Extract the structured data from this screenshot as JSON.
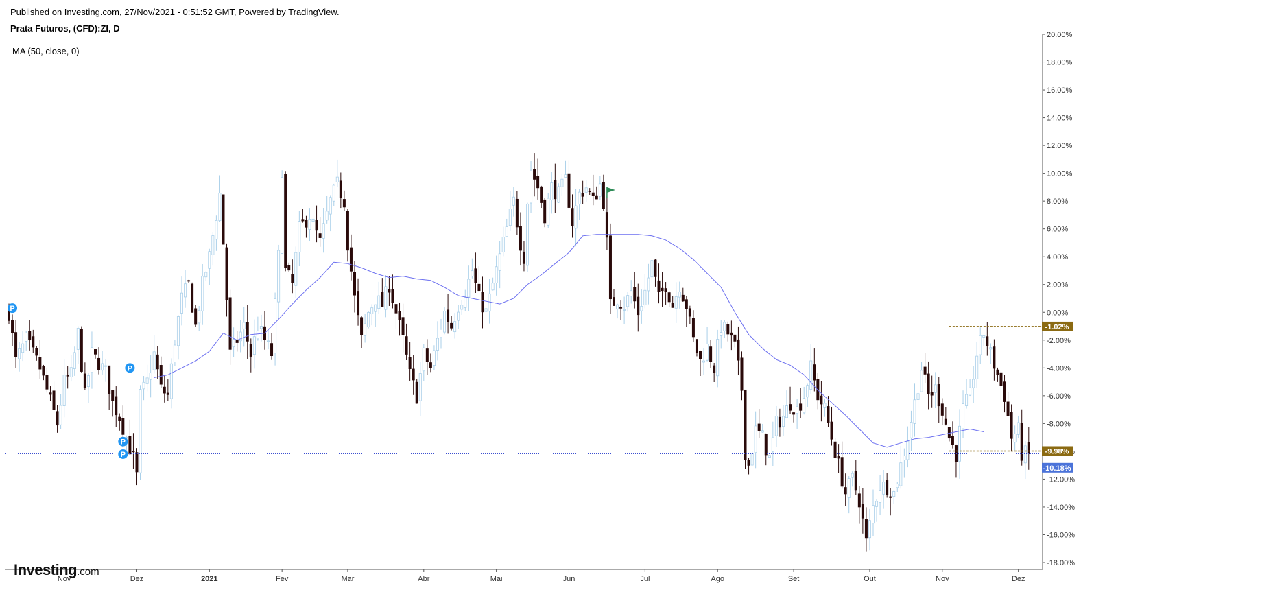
{
  "header": {
    "published": "Published on Investing.com, 27/Nov/2021 - 0:51:52 GMT, Powered by TradingView.",
    "symbol": "Prata Futuros, (CFD):ZI, D",
    "indicator": "MA (50, close, 0)"
  },
  "logo": {
    "brand": "Investing",
    "suffix": ".com"
  },
  "colors": {
    "up_candle": "#a9cfe9",
    "down_candle": "#2a0a0a",
    "ma_line": "#6b6ff0",
    "current_line": "#3b4fd0",
    "tag_brown": "#8b6a12",
    "tag_blue": "#4b73d9",
    "p_marker": "#2196f3",
    "flag": "#2e8b57"
  },
  "chart_data": {
    "type": "candlestick",
    "y_unit": "%",
    "ylim": [
      -19,
      20.6
    ],
    "y_ticks": [
      "20.00%",
      "18.00%",
      "16.00%",
      "14.00%",
      "12.00%",
      "10.00%",
      "8.00%",
      "6.00%",
      "4.00%",
      "2.00%",
      "0.00%",
      "-2.00%",
      "-4.00%",
      "-6.00%",
      "-8.00%",
      "-10.00%",
      "-12.00%",
      "-14.00%",
      "-16.00%",
      "-18.00%"
    ],
    "y_tick_values": [
      20,
      18,
      16,
      14,
      12,
      10,
      8,
      6,
      4,
      2,
      0,
      -2,
      -4,
      -6,
      -8,
      -10,
      -12,
      -14,
      -16,
      -18
    ],
    "x_labels": [
      "Nov",
      "Dez",
      "2021",
      "Fev",
      "Mar",
      "Abr",
      "Mai",
      "Jun",
      "Jul",
      "Ago",
      "Set",
      "Out",
      "Nov",
      "Dez"
    ],
    "x_label_bold": [
      false,
      false,
      true,
      false,
      false,
      false,
      false,
      false,
      false,
      false,
      false,
      false,
      false,
      false
    ],
    "x_label_index": [
      16,
      37,
      58,
      79,
      98,
      120,
      141,
      162,
      184,
      205,
      227,
      249,
      270,
      292
    ],
    "num_bars": 296,
    "path_points": [
      [
        0,
        0
      ],
      [
        2,
        -3.5
      ],
      [
        5,
        -2
      ],
      [
        9,
        -4
      ],
      [
        14,
        -8
      ],
      [
        16,
        -5
      ],
      [
        18,
        -4.5
      ],
      [
        20,
        -1.5
      ],
      [
        22,
        -6
      ],
      [
        24,
        -3
      ],
      [
        28,
        -4.3
      ],
      [
        30,
        -6.5
      ],
      [
        32,
        -7.5
      ],
      [
        34,
        -9
      ],
      [
        36,
        -10.5
      ],
      [
        37,
        -11.8
      ],
      [
        38,
        -6
      ],
      [
        40,
        -5
      ],
      [
        42,
        -3
      ],
      [
        44,
        -5.5
      ],
      [
        46,
        -6
      ],
      [
        48,
        -2
      ],
      [
        50,
        1
      ],
      [
        52,
        2
      ],
      [
        54,
        -1
      ],
      [
        56,
        2
      ],
      [
        58,
        4
      ],
      [
        60,
        7
      ],
      [
        61,
        8.5
      ],
      [
        62,
        5
      ],
      [
        64,
        -3
      ],
      [
        66,
        -2
      ],
      [
        68,
        -1
      ],
      [
        70,
        -3
      ],
      [
        72,
        -1
      ],
      [
        74,
        -2
      ],
      [
        76,
        -3
      ],
      [
        78,
        4
      ],
      [
        79,
        10.3
      ],
      [
        80,
        3
      ],
      [
        82,
        2
      ],
      [
        84,
        6
      ],
      [
        87,
        7
      ],
      [
        90,
        5
      ],
      [
        93,
        8
      ],
      [
        95,
        9.2
      ],
      [
        97,
        8
      ],
      [
        98,
        5
      ],
      [
        100,
        1
      ],
      [
        102,
        -2
      ],
      [
        104,
        0
      ],
      [
        106,
        1
      ],
      [
        108,
        0.5
      ],
      [
        110,
        2
      ],
      [
        112,
        0
      ],
      [
        114,
        -2
      ],
      [
        116,
        -4.5
      ],
      [
        118,
        -6
      ],
      [
        120,
        -3
      ],
      [
        122,
        -4
      ],
      [
        124,
        -2
      ],
      [
        126,
        0
      ],
      [
        128,
        -1
      ],
      [
        130,
        0.5
      ],
      [
        132,
        1.5
      ],
      [
        134,
        3
      ],
      [
        136,
        1
      ],
      [
        138,
        0
      ],
      [
        140,
        2
      ],
      [
        142,
        4
      ],
      [
        144,
        6
      ],
      [
        146,
        8
      ],
      [
        148,
        5
      ],
      [
        149,
        4
      ],
      [
        150,
        8
      ],
      [
        151,
        10.3
      ],
      [
        153,
        9
      ],
      [
        155,
        7
      ],
      [
        157,
        9
      ],
      [
        159,
        8.5
      ],
      [
        161,
        9.5
      ],
      [
        163,
        6.5
      ],
      [
        165,
        8.5
      ],
      [
        167,
        9
      ],
      [
        169,
        8
      ],
      [
        171,
        9.2
      ],
      [
        172,
        8
      ],
      [
        173,
        5
      ],
      [
        174,
        0.5
      ],
      [
        176,
        1
      ],
      [
        178,
        0.5
      ],
      [
        180,
        1.5
      ],
      [
        182,
        0
      ],
      [
        184,
        1.5
      ],
      [
        186,
        3.5
      ],
      [
        188,
        1
      ],
      [
        190,
        2
      ],
      [
        192,
        0.5
      ],
      [
        194,
        2
      ],
      [
        196,
        0.5
      ],
      [
        198,
        -2
      ],
      [
        200,
        -3.5
      ],
      [
        202,
        -2.5
      ],
      [
        204,
        -4
      ],
      [
        206,
        -1
      ],
      [
        208,
        -1.5
      ],
      [
        210,
        -2.5
      ],
      [
        212,
        -5.5
      ],
      [
        213,
        -10
      ],
      [
        214,
        -11
      ],
      [
        216,
        -8.5
      ],
      [
        218,
        -9
      ],
      [
        220,
        -10.5
      ],
      [
        222,
        -8
      ],
      [
        224,
        -7.5
      ],
      [
        226,
        -6.5
      ],
      [
        228,
        -7
      ],
      [
        230,
        -6
      ],
      [
        232,
        -4
      ],
      [
        234,
        -6
      ],
      [
        236,
        -7
      ],
      [
        238,
        -9
      ],
      [
        240,
        -11
      ],
      [
        242,
        -13
      ],
      [
        244,
        -12
      ],
      [
        246,
        -13.5
      ],
      [
        248,
        -16.5
      ],
      [
        250,
        -14
      ],
      [
        252,
        -12.5
      ],
      [
        254,
        -12.5
      ],
      [
        256,
        -13
      ],
      [
        258,
        -11
      ],
      [
        260,
        -9
      ],
      [
        262,
        -6.5
      ],
      [
        264,
        -4
      ],
      [
        266,
        -6
      ],
      [
        268,
        -5.5
      ],
      [
        270,
        -7
      ],
      [
        272,
        -9
      ],
      [
        274,
        -10.2
      ],
      [
        276,
        -7
      ],
      [
        278,
        -6
      ],
      [
        280,
        -3
      ],
      [
        282,
        -1.5
      ],
      [
        284,
        -3
      ],
      [
        286,
        -4.5
      ],
      [
        288,
        -6
      ],
      [
        290,
        -9
      ],
      [
        292,
        -8.5
      ],
      [
        293,
        -10.18
      ],
      [
        295,
        -10.18
      ]
    ],
    "ma_points": [
      [
        42,
        -4.7
      ],
      [
        46,
        -4.5
      ],
      [
        50,
        -4.0
      ],
      [
        54,
        -3.5
      ],
      [
        58,
        -2.8
      ],
      [
        62,
        -1.5
      ],
      [
        66,
        -2.0
      ],
      [
        70,
        -1.6
      ],
      [
        74,
        -1.5
      ],
      [
        78,
        -0.5
      ],
      [
        82,
        0.6
      ],
      [
        86,
        1.6
      ],
      [
        90,
        2.5
      ],
      [
        94,
        3.6
      ],
      [
        98,
        3.5
      ],
      [
        102,
        3.2
      ],
      [
        106,
        2.8
      ],
      [
        110,
        2.5
      ],
      [
        114,
        2.6
      ],
      [
        118,
        2.4
      ],
      [
        122,
        2.3
      ],
      [
        126,
        1.8
      ],
      [
        130,
        1.2
      ],
      [
        134,
        1.0
      ],
      [
        138,
        0.8
      ],
      [
        142,
        0.6
      ],
      [
        146,
        1.0
      ],
      [
        150,
        2.0
      ],
      [
        154,
        2.7
      ],
      [
        158,
        3.5
      ],
      [
        162,
        4.3
      ],
      [
        166,
        5.5
      ],
      [
        170,
        5.6
      ],
      [
        174,
        5.6
      ],
      [
        178,
        5.6
      ],
      [
        182,
        5.6
      ],
      [
        186,
        5.5
      ],
      [
        190,
        5.2
      ],
      [
        194,
        4.6
      ],
      [
        198,
        3.8
      ],
      [
        202,
        2.8
      ],
      [
        206,
        1.8
      ],
      [
        210,
        0.0
      ],
      [
        214,
        -1.6
      ],
      [
        218,
        -2.6
      ],
      [
        222,
        -3.4
      ],
      [
        226,
        -3.8
      ],
      [
        230,
        -4.5
      ],
      [
        234,
        -5.6
      ],
      [
        238,
        -6.5
      ],
      [
        242,
        -7.4
      ],
      [
        246,
        -8.4
      ],
      [
        250,
        -9.4
      ],
      [
        254,
        -9.7
      ],
      [
        258,
        -9.4
      ],
      [
        262,
        -9.1
      ],
      [
        266,
        -9.0
      ],
      [
        270,
        -8.8
      ],
      [
        274,
        -8.6
      ],
      [
        278,
        -8.4
      ],
      [
        282,
        -8.6
      ]
    ],
    "current_value": -10.18,
    "current_label": "-10.18%",
    "range_high": -1.02,
    "range_high_label": "-1.02%",
    "range_low": -9.98,
    "range_low_label": "-9.98%",
    "range_start_index": 272,
    "range_end_index": 294,
    "markers": [
      {
        "label": "P",
        "index": 1,
        "value": 0.3
      },
      {
        "label": "P",
        "index": 35,
        "value": -4.0
      },
      {
        "label": "P",
        "index": 33,
        "value": -9.3
      },
      {
        "label": "P",
        "index": 33,
        "value": -10.2
      }
    ],
    "flag": {
      "index": 173,
      "value": 8.5
    }
  }
}
